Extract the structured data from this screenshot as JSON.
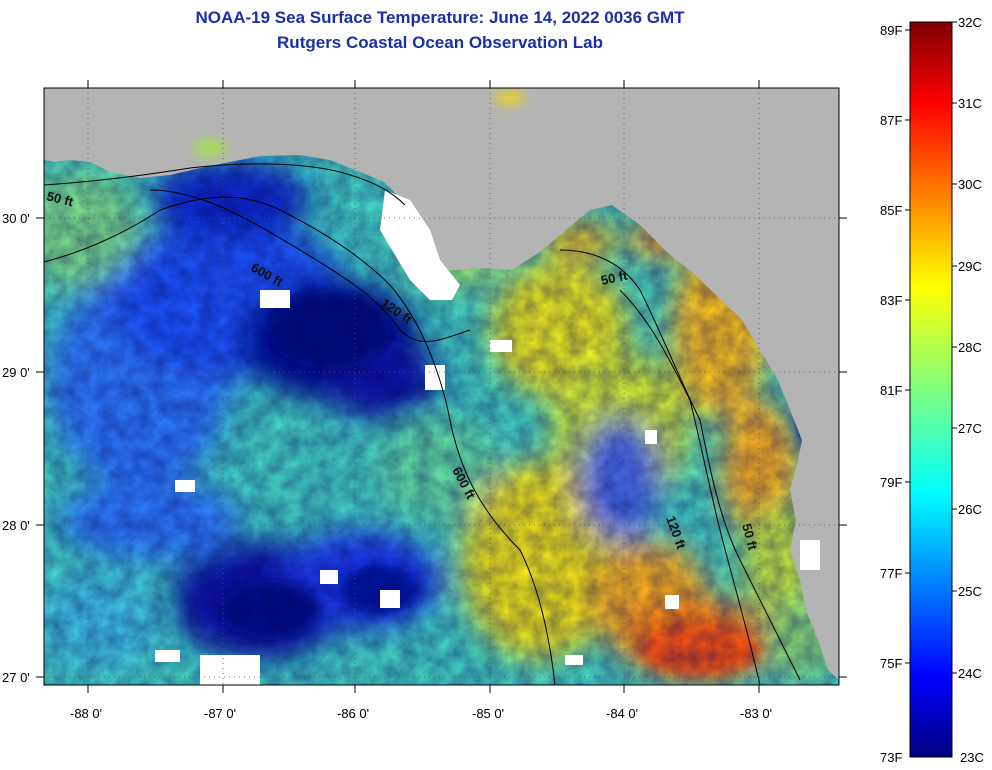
{
  "title_line1": "NOAA-19 Sea Surface Temperature:  June 14, 2022 0036 GMT",
  "title_line2": "Rutgers Coastal Ocean Observation Lab",
  "colors": {
    "land": "#b4b4b4",
    "cloud": "#ffffff",
    "title": "#1a2fa8"
  },
  "axes": {
    "lon_labels": [
      "-88 0'",
      "-87 0'",
      "-86 0'",
      "-85 0'",
      "-84 0'",
      "-83 0'"
    ],
    "lat_labels": [
      "30 0'",
      "29 0'",
      "28 0'",
      "27 0'"
    ]
  },
  "contours": {
    "labels": [
      "50 ft",
      "600 ft",
      "120 ft",
      "50 ft",
      "600 ft",
      "120 ft",
      "50 ft"
    ]
  },
  "colorbar": {
    "fahrenheit_labels": [
      "89F",
      "87F",
      "85F",
      "83F",
      "81F",
      "79F",
      "77F",
      "75F",
      "73F"
    ],
    "celsius_labels": [
      "32C",
      "31C",
      "30C",
      "29C",
      "28C",
      "27C",
      "26C",
      "25C",
      "24C",
      "23C"
    ],
    "f_range": [
      73,
      89
    ],
    "c_range": [
      23,
      32
    ]
  }
}
